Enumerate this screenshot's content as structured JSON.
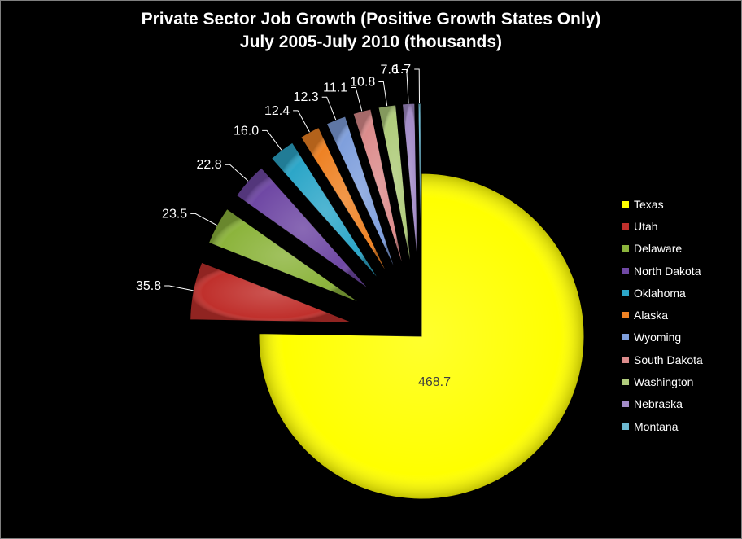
{
  "chart_data": {
    "type": "pie",
    "title": "Private Sector Job Growth (Positive Growth States Only)",
    "subtitle": "July 2005-July 2010 (thousands)",
    "categories": [
      "Texas",
      "Utah",
      "Delaware",
      "North Dakota",
      "Oklahoma",
      "Alaska",
      "Wyoming",
      "South Dakota",
      "Washington",
      "Nebraska",
      "Montana"
    ],
    "values": [
      468.7,
      35.8,
      23.5,
      22.8,
      16.0,
      12.4,
      12.3,
      11.1,
      10.8,
      7.6,
      1.7
    ],
    "value_labels": [
      "468.7",
      "35.8",
      "23.5",
      "22.8",
      "16.0",
      "12.4",
      "12.3",
      "11.1",
      "10.8",
      "7.6",
      "1.7"
    ],
    "colors": [
      "#ffff00",
      "#c0302c",
      "#8cb43c",
      "#6f48a4",
      "#2ca6c8",
      "#ee8224",
      "#7f9fdc",
      "#dc8c8c",
      "#b0cc7c",
      "#a38cc8",
      "#6cb8d0"
    ],
    "legend_position": "right",
    "exploded": "all slices except first"
  }
}
